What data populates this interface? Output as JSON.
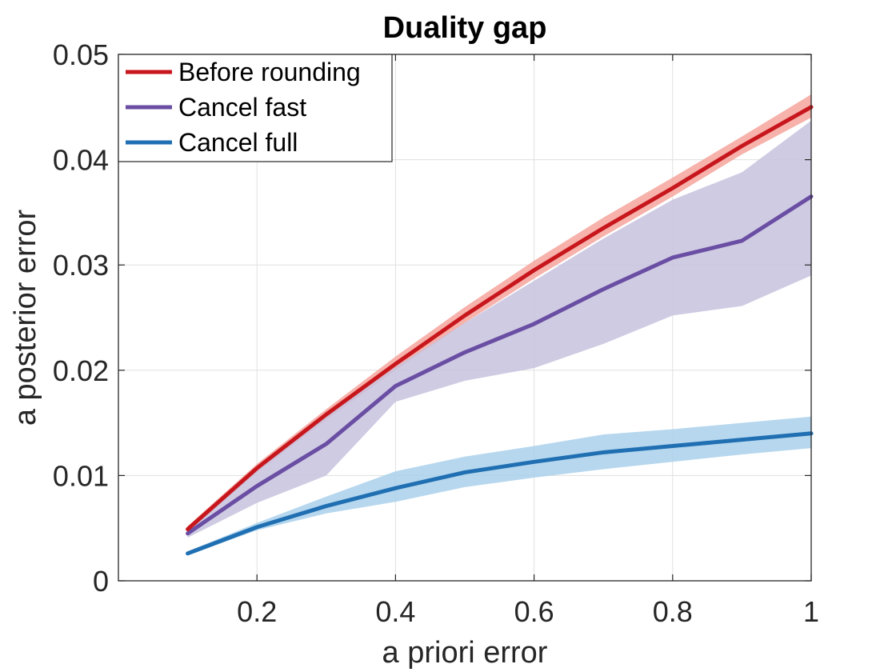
{
  "chart_data": {
    "type": "line",
    "title": "Duality gap",
    "xlabel": "a priori error",
    "ylabel": "a posterior error",
    "xlim": [
      0,
      1
    ],
    "ylim": [
      0,
      0.05
    ],
    "xticks": [
      0.2,
      0.4,
      0.6,
      0.8,
      1
    ],
    "xtick_labels": [
      "0.2",
      "0.4",
      "0.6",
      "0.8",
      "1"
    ],
    "yticks": [
      0,
      0.01,
      0.02,
      0.03,
      0.04,
      0.05
    ],
    "ytick_labels": [
      "0",
      "0.01",
      "0.02",
      "0.03",
      "0.04",
      "0.05"
    ],
    "grid": true,
    "legend_position": "top-left",
    "x": [
      0.1,
      0.2,
      0.3,
      0.4,
      0.5,
      0.6,
      0.7,
      0.8,
      0.9,
      1.0
    ],
    "series": [
      {
        "name": "Before rounding",
        "color": "#c8161d",
        "band_color": "#f4a49c",
        "values": [
          0.0049,
          0.0107,
          0.0158,
          0.0206,
          0.0252,
          0.0295,
          0.0335,
          0.0373,
          0.0413,
          0.045
        ],
        "lower": [
          0.0046,
          0.0103,
          0.0153,
          0.02,
          0.0245,
          0.0287,
          0.0327,
          0.0365,
          0.0405,
          0.044
        ],
        "upper": [
          0.0052,
          0.0111,
          0.0163,
          0.0213,
          0.026,
          0.0304,
          0.0345,
          0.0383,
          0.0422,
          0.0462
        ]
      },
      {
        "name": "Cancel fast",
        "color": "#6a4ea3",
        "band_color": "#c7c2de",
        "values": [
          0.0045,
          0.009,
          0.013,
          0.0185,
          0.0217,
          0.0244,
          0.0277,
          0.0307,
          0.0323,
          0.0365
        ],
        "lower": [
          0.0041,
          0.0074,
          0.01,
          0.017,
          0.019,
          0.0202,
          0.0225,
          0.0252,
          0.0261,
          0.029
        ],
        "upper": [
          0.0049,
          0.0105,
          0.0157,
          0.0203,
          0.0245,
          0.0285,
          0.0325,
          0.0362,
          0.0388,
          0.0437
        ]
      },
      {
        "name": "Cancel full",
        "color": "#1f6fb2",
        "band_color": "#a9d0eb",
        "values": [
          0.0026,
          0.0051,
          0.0071,
          0.0088,
          0.0103,
          0.0113,
          0.0122,
          0.0128,
          0.0134,
          0.014
        ],
        "lower": [
          0.0024,
          0.0048,
          0.0064,
          0.0075,
          0.0089,
          0.0098,
          0.0106,
          0.0113,
          0.012,
          0.0126
        ],
        "upper": [
          0.0028,
          0.0055,
          0.008,
          0.0104,
          0.0118,
          0.0128,
          0.0139,
          0.0144,
          0.015,
          0.0156
        ]
      }
    ]
  }
}
